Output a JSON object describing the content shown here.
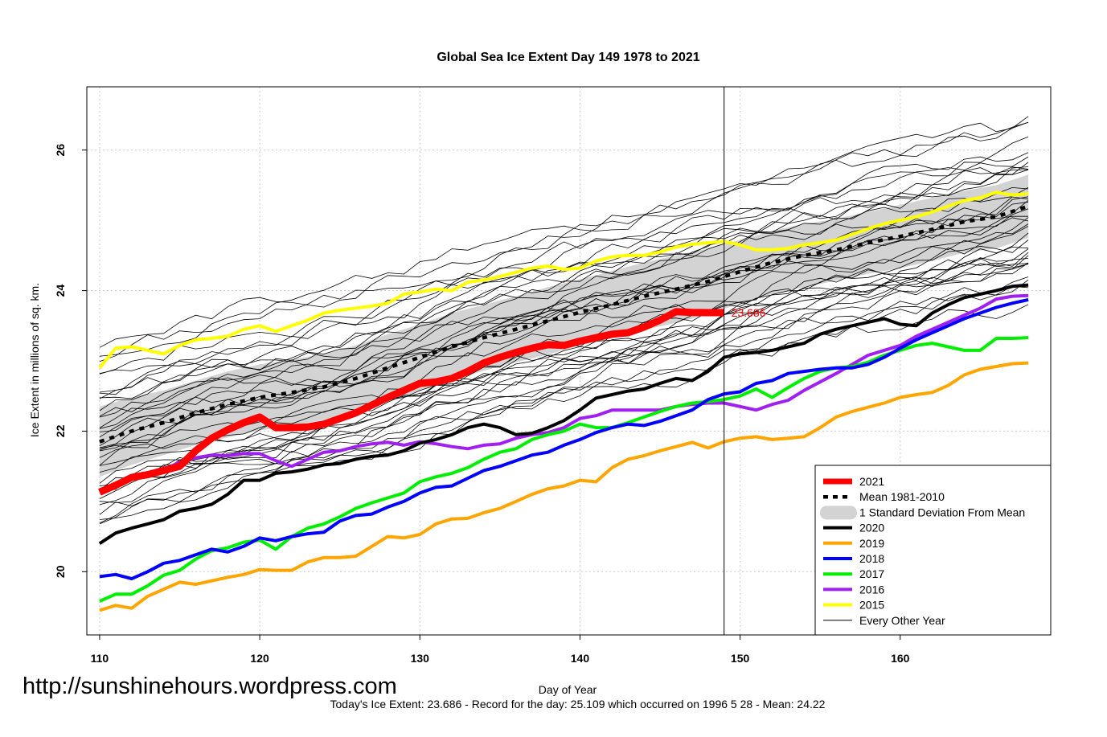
{
  "chart_data": {
    "type": "line",
    "title": "Global Sea Ice Extent Day 149 1978 to 2021",
    "xlabel": "Day of Year",
    "ylabel": "Ice Extent in millions of sq. km.",
    "xlim": [
      109.2,
      169.4
    ],
    "ylim": [
      19.1,
      26.9
    ],
    "x_ticks": [
      "110",
      "120",
      "130",
      "140",
      "150",
      "160"
    ],
    "y_ticks": [
      "20",
      "22",
      "24",
      "26"
    ],
    "grid": true,
    "current_day": 149,
    "current_label": "23.686",
    "legend_position": "bottom-right",
    "legend": [
      {
        "label": "2021",
        "color": "#ff0000",
        "kind": "line",
        "width": "thick"
      },
      {
        "label": "Mean 1981-2010",
        "color": "#000000",
        "kind": "dashed"
      },
      {
        "label": "1 Standard Deviation From Mean",
        "color": "#d3d3d3",
        "kind": "band"
      },
      {
        "label": "2020",
        "color": "#000000",
        "kind": "line"
      },
      {
        "label": "2019",
        "color": "#ffa500",
        "kind": "line"
      },
      {
        "label": "2018",
        "color": "#0000ff",
        "kind": "line"
      },
      {
        "label": "2017",
        "color": "#00ee00",
        "kind": "line"
      },
      {
        "label": "2016",
        "color": "#a020f0",
        "kind": "line"
      },
      {
        "label": "2015",
        "color": "#ffff00",
        "kind": "line"
      },
      {
        "label": "Every Other Year",
        "color": "#000000",
        "kind": "thin"
      }
    ],
    "mean_series": {
      "x": [
        110,
        112,
        114,
        116,
        118,
        120,
        122,
        124,
        126,
        128,
        130,
        132,
        134,
        136,
        138,
        140,
        142,
        144,
        146,
        148,
        150,
        152,
        154,
        156,
        158,
        160,
        162,
        164,
        166,
        168
      ],
      "values": [
        21.85,
        22.0,
        22.12,
        22.26,
        22.38,
        22.48,
        22.55,
        22.63,
        22.75,
        22.9,
        23.05,
        23.2,
        23.33,
        23.45,
        23.57,
        23.69,
        23.8,
        23.92,
        24.02,
        24.13,
        24.27,
        24.4,
        24.5,
        24.58,
        24.68,
        24.77,
        24.87,
        24.98,
        25.05,
        25.2
      ]
    },
    "std_band": {
      "x": [
        110,
        112,
        114,
        116,
        118,
        120,
        122,
        124,
        126,
        128,
        130,
        132,
        134,
        136,
        138,
        140,
        142,
        144,
        146,
        148,
        150,
        152,
        154,
        156,
        158,
        160,
        162,
        164,
        166,
        168
      ],
      "upper": [
        22.35,
        22.48,
        22.58,
        22.72,
        22.85,
        22.95,
        23.02,
        23.1,
        23.22,
        23.38,
        23.52,
        23.68,
        23.8,
        23.92,
        24.05,
        24.16,
        24.28,
        24.4,
        24.5,
        24.6,
        24.72,
        24.85,
        24.95,
        25.02,
        25.12,
        25.22,
        25.32,
        25.42,
        25.5,
        25.65
      ],
      "lower": [
        21.35,
        21.52,
        21.66,
        21.8,
        21.91,
        22.01,
        22.08,
        22.16,
        22.28,
        22.42,
        22.58,
        22.72,
        22.86,
        22.98,
        23.09,
        23.22,
        23.32,
        23.44,
        23.54,
        23.66,
        23.82,
        23.95,
        24.05,
        24.14,
        24.24,
        24.32,
        24.42,
        24.54,
        24.6,
        24.75
      ]
    },
    "series": [
      {
        "name": "2021",
        "color": "#ff0000",
        "x": [
          110,
          111,
          112,
          113,
          114,
          115,
          116,
          117,
          118,
          119,
          120,
          121,
          122,
          123,
          124,
          125,
          126,
          127,
          128,
          129,
          130,
          131,
          132,
          133,
          134,
          135,
          136,
          137,
          138,
          139,
          140,
          141,
          142,
          143,
          144,
          145,
          146,
          147,
          148,
          149
        ],
        "values": [
          21.13,
          21.23,
          21.34,
          21.38,
          21.44,
          21.5,
          21.72,
          21.9,
          22.02,
          22.12,
          22.2,
          22.05,
          22.05,
          22.06,
          22.1,
          22.18,
          22.26,
          22.37,
          22.48,
          22.58,
          22.68,
          22.7,
          22.75,
          22.85,
          22.97,
          23.05,
          23.12,
          23.18,
          23.23,
          23.22,
          23.28,
          23.33,
          23.38,
          23.4,
          23.48,
          23.58,
          23.7,
          23.69,
          23.686,
          23.686
        ]
      },
      {
        "name": "2020",
        "color": "#000000",
        "x": [
          110,
          111,
          112,
          113,
          114,
          115,
          116,
          117,
          118,
          119,
          120,
          121,
          122,
          123,
          124,
          125,
          126,
          127,
          128,
          129,
          130,
          131,
          132,
          133,
          134,
          135,
          136,
          137,
          138,
          139,
          140,
          141,
          142,
          143,
          144,
          145,
          146,
          147,
          148,
          149,
          150,
          151,
          152,
          153,
          154,
          155,
          156,
          157,
          158,
          159,
          160,
          161,
          162,
          163,
          164,
          165,
          166,
          167,
          168
        ],
        "values": [
          20.4,
          20.55,
          20.62,
          20.68,
          20.74,
          20.86,
          20.9,
          20.96,
          21.1,
          21.3,
          21.3,
          21.4,
          21.42,
          21.46,
          21.52,
          21.54,
          21.6,
          21.64,
          21.66,
          21.72,
          21.83,
          21.88,
          21.95,
          22.05,
          22.1,
          22.05,
          21.95,
          21.97,
          22.05,
          22.15,
          22.3,
          22.47,
          22.52,
          22.57,
          22.6,
          22.68,
          22.75,
          22.72,
          22.85,
          23.05,
          23.1,
          23.12,
          23.15,
          23.2,
          23.25,
          23.38,
          23.45,
          23.5,
          23.55,
          23.6,
          23.52,
          23.5,
          23.68,
          23.8,
          23.9,
          23.95,
          24.0,
          24.06,
          24.08
        ]
      },
      {
        "name": "2019",
        "color": "#ffa500",
        "x": [
          110,
          111,
          112,
          113,
          114,
          115,
          116,
          117,
          118,
          119,
          120,
          121,
          122,
          123,
          124,
          125,
          126,
          127,
          128,
          129,
          130,
          131,
          132,
          133,
          134,
          135,
          136,
          137,
          138,
          139,
          140,
          141,
          142,
          143,
          144,
          145,
          146,
          147,
          148,
          149,
          150,
          151,
          152,
          153,
          154,
          155,
          156,
          157,
          158,
          159,
          160,
          161,
          162,
          163,
          164,
          165,
          166,
          167,
          168
        ],
        "values": [
          19.45,
          19.52,
          19.48,
          19.65,
          19.75,
          19.85,
          19.82,
          19.87,
          19.92,
          19.96,
          20.03,
          20.02,
          20.02,
          20.14,
          20.2,
          20.2,
          20.22,
          20.36,
          20.5,
          20.48,
          20.53,
          20.68,
          20.75,
          20.76,
          20.84,
          20.9,
          21.0,
          21.1,
          21.18,
          21.22,
          21.3,
          21.28,
          21.48,
          21.6,
          21.65,
          21.72,
          21.78,
          21.84,
          21.76,
          21.85,
          21.9,
          21.92,
          21.88,
          21.9,
          21.92,
          22.05,
          22.2,
          22.28,
          22.34,
          22.4,
          22.48,
          22.52,
          22.55,
          22.65,
          22.8,
          22.88,
          22.92,
          22.96,
          22.97
        ]
      },
      {
        "name": "2018",
        "color": "#0000ff",
        "x": [
          110,
          111,
          112,
          113,
          114,
          115,
          116,
          117,
          118,
          119,
          120,
          121,
          122,
          123,
          124,
          125,
          126,
          127,
          128,
          129,
          130,
          131,
          132,
          133,
          134,
          135,
          136,
          137,
          138,
          139,
          140,
          141,
          142,
          143,
          144,
          145,
          146,
          147,
          148,
          149,
          150,
          151,
          152,
          153,
          154,
          155,
          156,
          157,
          158,
          159,
          160,
          161,
          162,
          163,
          164,
          165,
          166,
          167,
          168
        ],
        "values": [
          19.93,
          19.96,
          19.9,
          20.0,
          20.12,
          20.16,
          20.24,
          20.32,
          20.28,
          20.36,
          20.48,
          20.44,
          20.5,
          20.54,
          20.56,
          20.72,
          20.8,
          20.82,
          20.92,
          21.0,
          21.12,
          21.2,
          21.22,
          21.33,
          21.44,
          21.5,
          21.58,
          21.66,
          21.7,
          21.8,
          21.88,
          21.98,
          22.05,
          22.1,
          22.08,
          22.14,
          22.22,
          22.3,
          22.45,
          22.53,
          22.56,
          22.68,
          22.72,
          22.82,
          22.85,
          22.88,
          22.9,
          22.9,
          22.95,
          23.05,
          23.18,
          23.3,
          23.4,
          23.5,
          23.6,
          23.68,
          23.76,
          23.82,
          23.87
        ]
      },
      {
        "name": "2017",
        "color": "#00ee00",
        "x": [
          110,
          111,
          112,
          113,
          114,
          115,
          116,
          117,
          118,
          119,
          120,
          121,
          122,
          123,
          124,
          125,
          126,
          127,
          128,
          129,
          130,
          131,
          132,
          133,
          134,
          135,
          136,
          137,
          138,
          139,
          140,
          141,
          142,
          143,
          144,
          145,
          146,
          147,
          148,
          149,
          150,
          151,
          152,
          153,
          154,
          155,
          156,
          157,
          158,
          159,
          160,
          161,
          162,
          163,
          164,
          165,
          166,
          167,
          168
        ],
        "values": [
          19.58,
          19.68,
          19.68,
          19.8,
          19.95,
          20.02,
          20.18,
          20.3,
          20.34,
          20.42,
          20.45,
          20.32,
          20.5,
          20.62,
          20.68,
          20.78,
          20.9,
          20.98,
          21.05,
          21.12,
          21.28,
          21.35,
          21.4,
          21.48,
          21.6,
          21.7,
          21.75,
          21.88,
          21.95,
          22.0,
          22.1,
          22.05,
          22.05,
          22.12,
          22.2,
          22.28,
          22.35,
          22.4,
          22.42,
          22.45,
          22.5,
          22.6,
          22.48,
          22.62,
          22.75,
          22.85,
          22.9,
          22.92,
          22.98,
          23.08,
          23.15,
          23.22,
          23.25,
          23.2,
          23.15,
          23.15,
          23.32,
          23.32,
          23.33
        ]
      },
      {
        "name": "2016",
        "color": "#a020f0",
        "x": [
          110,
          111,
          112,
          113,
          114,
          115,
          116,
          117,
          118,
          119,
          120,
          121,
          122,
          123,
          124,
          125,
          126,
          127,
          128,
          129,
          130,
          131,
          132,
          133,
          134,
          135,
          136,
          137,
          138,
          139,
          140,
          141,
          142,
          143,
          144,
          145,
          146,
          147,
          148,
          149,
          150,
          151,
          152,
          153,
          154,
          155,
          156,
          157,
          158,
          159,
          160,
          161,
          162,
          163,
          164,
          165,
          166,
          167,
          168
        ],
        "values": [
          21.15,
          21.25,
          21.35,
          21.38,
          21.45,
          21.56,
          21.62,
          21.66,
          21.65,
          21.68,
          21.68,
          21.58,
          21.5,
          21.6,
          21.7,
          21.72,
          21.78,
          21.82,
          21.84,
          21.8,
          21.85,
          21.82,
          21.78,
          21.75,
          21.8,
          21.82,
          21.9,
          21.95,
          21.98,
          22.05,
          22.18,
          22.22,
          22.3,
          22.3,
          22.3,
          22.3,
          22.35,
          22.38,
          22.4,
          22.4,
          22.35,
          22.3,
          22.38,
          22.44,
          22.58,
          22.7,
          22.82,
          22.95,
          23.08,
          23.15,
          23.22,
          23.35,
          23.45,
          23.55,
          23.65,
          23.75,
          23.88,
          23.92,
          23.93
        ]
      },
      {
        "name": "2015",
        "color": "#ffff00",
        "x": [
          110,
          111,
          112,
          113,
          114,
          115,
          116,
          117,
          118,
          119,
          120,
          121,
          122,
          123,
          124,
          125,
          126,
          127,
          128,
          129,
          130,
          131,
          132,
          133,
          134,
          135,
          136,
          137,
          138,
          139,
          140,
          141,
          142,
          143,
          144,
          145,
          146,
          147,
          148,
          149,
          150,
          151,
          152,
          153,
          154,
          155,
          156,
          157,
          158,
          159,
          160,
          161,
          162,
          163,
          164,
          165,
          166,
          167,
          168
        ],
        "values": [
          22.9,
          23.18,
          23.2,
          23.15,
          23.1,
          23.22,
          23.3,
          23.32,
          23.35,
          23.45,
          23.5,
          23.42,
          23.5,
          23.58,
          23.68,
          23.72,
          23.75,
          23.78,
          23.82,
          23.95,
          23.98,
          24.02,
          24.0,
          24.12,
          24.15,
          24.2,
          24.26,
          24.32,
          24.35,
          24.3,
          24.32,
          24.42,
          24.48,
          24.5,
          24.5,
          24.55,
          24.62,
          24.66,
          24.68,
          24.7,
          24.65,
          24.58,
          24.58,
          24.6,
          24.65,
          24.68,
          24.72,
          24.8,
          24.88,
          24.95,
          25.0,
          25.05,
          25.12,
          25.2,
          25.28,
          25.32,
          25.4,
          25.36,
          25.38
        ]
      }
    ]
  },
  "annotations": {
    "watermark": "http://sunshinehours.wordpress.com",
    "footer": "Today's Ice Extent: 23.686  - Record for the day: 25.109 which occurred on 1996 5 28  - Mean: 24.22"
  }
}
